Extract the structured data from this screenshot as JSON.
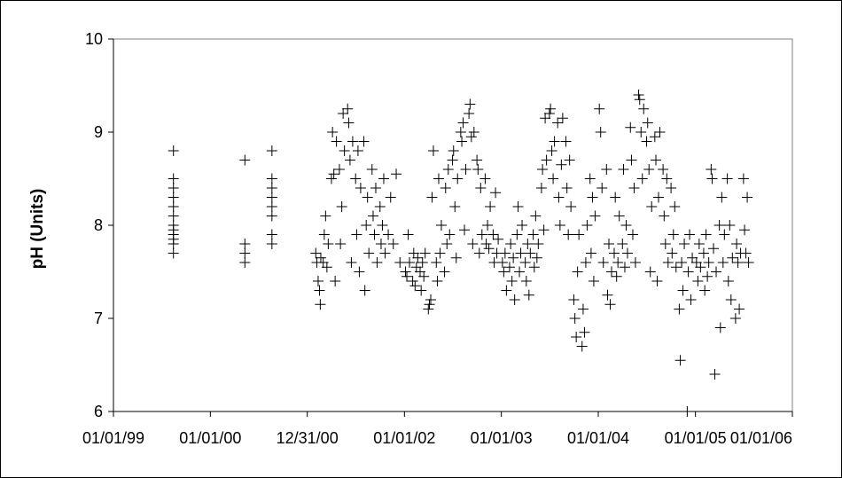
{
  "chart_data": {
    "type": "scatter",
    "ylabel": "pH (Units)",
    "xlabel": "",
    "ylim": [
      6,
      10
    ],
    "yticks": [
      "6",
      "7",
      "8",
      "9",
      "10"
    ],
    "xlim": [
      "1999-01-01",
      "2006-01-01"
    ],
    "xticks": [
      {
        "date": "1999-01-01",
        "label": "01/01/99"
      },
      {
        "date": "2000-01-01",
        "label": "01/01/00"
      },
      {
        "date": "2000-12-31",
        "label": "12/31/00"
      },
      {
        "date": "2002-01-01",
        "label": "01/01/02"
      },
      {
        "date": "2003-01-01",
        "label": "01/01/03"
      },
      {
        "date": "2004-01-01",
        "label": "01/01/04"
      },
      {
        "date": "2005-01-01",
        "label": "01/01/05"
      },
      {
        "date": "2006-01-01",
        "label": "01/01/06"
      }
    ],
    "marker": "plus",
    "marker_color": "#000000",
    "grid": false,
    "points": [
      [
        "1999-08-15",
        8.8
      ],
      [
        "1999-08-15",
        8.5
      ],
      [
        "1999-08-15",
        8.4
      ],
      [
        "1999-08-15",
        8.3
      ],
      [
        "1999-08-15",
        8.2
      ],
      [
        "1999-08-15",
        8.1
      ],
      [
        "1999-08-15",
        8.0
      ],
      [
        "1999-08-15",
        7.95
      ],
      [
        "1999-08-15",
        7.9
      ],
      [
        "1999-08-15",
        7.85
      ],
      [
        "1999-08-15",
        7.8
      ],
      [
        "1999-08-15",
        7.7
      ],
      [
        "2000-05-10",
        8.7
      ],
      [
        "2000-05-10",
        7.8
      ],
      [
        "2000-05-10",
        7.7
      ],
      [
        "2000-05-10",
        7.6
      ],
      [
        "2000-08-20",
        8.8
      ],
      [
        "2000-08-20",
        8.5
      ],
      [
        "2000-08-20",
        8.4
      ],
      [
        "2000-08-20",
        8.3
      ],
      [
        "2000-08-20",
        8.2
      ],
      [
        "2000-08-20",
        8.1
      ],
      [
        "2000-08-20",
        7.9
      ],
      [
        "2000-08-20",
        7.8
      ],
      [
        "2001-02-01",
        7.7
      ],
      [
        "2001-02-05",
        7.6
      ],
      [
        "2001-02-10",
        7.4
      ],
      [
        "2001-02-15",
        7.3
      ],
      [
        "2001-02-18",
        7.15
      ],
      [
        "2001-02-20",
        7.65
      ],
      [
        "2001-03-01",
        7.6
      ],
      [
        "2001-03-05",
        7.9
      ],
      [
        "2001-03-10",
        8.1
      ],
      [
        "2001-03-15",
        7.55
      ],
      [
        "2001-03-20",
        7.8
      ],
      [
        "2001-04-01",
        8.5
      ],
      [
        "2001-04-05",
        9.0
      ],
      [
        "2001-04-10",
        8.55
      ],
      [
        "2001-04-15",
        7.4
      ],
      [
        "2001-04-20",
        8.9
      ],
      [
        "2001-05-01",
        8.6
      ],
      [
        "2001-05-05",
        7.8
      ],
      [
        "2001-05-10",
        8.2
      ],
      [
        "2001-05-15",
        9.2
      ],
      [
        "2001-05-20",
        8.8
      ],
      [
        "2001-06-01",
        9.25
      ],
      [
        "2001-06-05",
        9.1
      ],
      [
        "2001-06-10",
        8.7
      ],
      [
        "2001-06-15",
        7.6
      ],
      [
        "2001-06-20",
        8.9
      ],
      [
        "2001-07-01",
        8.5
      ],
      [
        "2001-07-05",
        7.9
      ],
      [
        "2001-07-10",
        8.8
      ],
      [
        "2001-07-15",
        7.5
      ],
      [
        "2001-07-20",
        8.4
      ],
      [
        "2001-08-01",
        8.9
      ],
      [
        "2001-08-05",
        7.3
      ],
      [
        "2001-08-10",
        8.0
      ],
      [
        "2001-08-15",
        8.3
      ],
      [
        "2001-08-20",
        7.7
      ],
      [
        "2001-09-01",
        8.6
      ],
      [
        "2001-09-05",
        8.1
      ],
      [
        "2001-09-10",
        7.9
      ],
      [
        "2001-09-15",
        8.4
      ],
      [
        "2001-09-20",
        7.6
      ],
      [
        "2001-10-01",
        8.2
      ],
      [
        "2001-10-05",
        7.8
      ],
      [
        "2001-10-10",
        8.0
      ],
      [
        "2001-10-15",
        8.5
      ],
      [
        "2001-10-20",
        7.7
      ],
      [
        "2001-11-01",
        7.9
      ],
      [
        "2001-11-10",
        8.3
      ],
      [
        "2001-11-20",
        7.8
      ],
      [
        "2001-12-01",
        8.55
      ],
      [
        "2001-12-15",
        7.6
      ],
      [
        "2002-01-05",
        7.5
      ],
      [
        "2002-01-10",
        7.45
      ],
      [
        "2002-01-15",
        7.9
      ],
      [
        "2002-01-20",
        7.6
      ],
      [
        "2002-02-01",
        7.4
      ],
      [
        "2002-02-05",
        7.7
      ],
      [
        "2002-02-10",
        7.35
      ],
      [
        "2002-02-15",
        7.55
      ],
      [
        "2002-02-20",
        7.65
      ],
      [
        "2002-03-01",
        7.5
      ],
      [
        "2002-03-05",
        7.3
      ],
      [
        "2002-03-10",
        7.6
      ],
      [
        "2002-03-15",
        7.45
      ],
      [
        "2002-03-20",
        7.7
      ],
      [
        "2002-04-01",
        7.1
      ],
      [
        "2002-04-05",
        7.15
      ],
      [
        "2002-04-10",
        7.2
      ],
      [
        "2002-04-15",
        8.3
      ],
      [
        "2002-04-20",
        8.8
      ],
      [
        "2002-05-01",
        7.6
      ],
      [
        "2002-05-05",
        7.4
      ],
      [
        "2002-05-10",
        8.5
      ],
      [
        "2002-05-15",
        7.7
      ],
      [
        "2002-05-20",
        8.0
      ],
      [
        "2002-06-01",
        7.5
      ],
      [
        "2002-06-05",
        8.4
      ],
      [
        "2002-06-10",
        7.8
      ],
      [
        "2002-06-15",
        8.6
      ],
      [
        "2002-06-20",
        7.9
      ],
      [
        "2002-07-01",
        8.7
      ],
      [
        "2002-07-05",
        8.8
      ],
      [
        "2002-07-10",
        8.2
      ],
      [
        "2002-07-15",
        7.65
      ],
      [
        "2002-07-20",
        8.5
      ],
      [
        "2002-08-01",
        9.0
      ],
      [
        "2002-08-05",
        8.9
      ],
      [
        "2002-08-10",
        9.1
      ],
      [
        "2002-08-15",
        7.95
      ],
      [
        "2002-08-20",
        8.6
      ],
      [
        "2002-09-01",
        9.2
      ],
      [
        "2002-09-05",
        9.3
      ],
      [
        "2002-09-10",
        8.95
      ],
      [
        "2002-09-15",
        7.8
      ],
      [
        "2002-09-20",
        9.0
      ],
      [
        "2002-10-01",
        8.7
      ],
      [
        "2002-10-05",
        8.6
      ],
      [
        "2002-10-10",
        7.7
      ],
      [
        "2002-10-15",
        8.4
      ],
      [
        "2002-10-20",
        7.9
      ],
      [
        "2002-11-01",
        8.5
      ],
      [
        "2002-11-05",
        7.8
      ],
      [
        "2002-11-10",
        8.0
      ],
      [
        "2002-11-15",
        7.75
      ],
      [
        "2002-11-20",
        8.2
      ],
      [
        "2002-12-01",
        7.9
      ],
      [
        "2002-12-05",
        7.6
      ],
      [
        "2002-12-10",
        8.35
      ],
      [
        "2002-12-15",
        7.7
      ],
      [
        "2002-12-20",
        7.85
      ],
      [
        "2003-01-05",
        7.6
      ],
      [
        "2003-01-10",
        7.5
      ],
      [
        "2003-01-15",
        7.7
      ],
      [
        "2003-01-20",
        7.3
      ],
      [
        "2003-02-01",
        7.55
      ],
      [
        "2003-02-05",
        7.8
      ],
      [
        "2003-02-10",
        7.4
      ],
      [
        "2003-02-15",
        7.65
      ],
      [
        "2003-02-20",
        7.2
      ],
      [
        "2003-03-01",
        7.9
      ],
      [
        "2003-03-05",
        8.2
      ],
      [
        "2003-03-10",
        7.5
      ],
      [
        "2003-03-15",
        7.7
      ],
      [
        "2003-03-20",
        8.0
      ],
      [
        "2003-04-01",
        7.6
      ],
      [
        "2003-04-05",
        7.4
      ],
      [
        "2003-04-10",
        7.8
      ],
      [
        "2003-04-15",
        7.25
      ],
      [
        "2003-04-20",
        7.7
      ],
      [
        "2003-05-01",
        7.9
      ],
      [
        "2003-05-05",
        7.55
      ],
      [
        "2003-05-10",
        8.1
      ],
      [
        "2003-05-15",
        7.65
      ],
      [
        "2003-05-20",
        7.8
      ],
      [
        "2003-06-01",
        8.4
      ],
      [
        "2003-06-05",
        8.6
      ],
      [
        "2003-06-10",
        7.95
      ],
      [
        "2003-06-15",
        9.15
      ],
      [
        "2003-06-20",
        8.7
      ],
      [
        "2003-07-01",
        9.2
      ],
      [
        "2003-07-05",
        9.25
      ],
      [
        "2003-07-10",
        8.8
      ],
      [
        "2003-07-15",
        8.5
      ],
      [
        "2003-07-20",
        8.9
      ],
      [
        "2003-08-01",
        9.1
      ],
      [
        "2003-08-05",
        8.3
      ],
      [
        "2003-08-10",
        8.0
      ],
      [
        "2003-08-15",
        8.65
      ],
      [
        "2003-08-20",
        9.15
      ],
      [
        "2003-09-01",
        8.9
      ],
      [
        "2003-09-05",
        8.4
      ],
      [
        "2003-09-10",
        7.9
      ],
      [
        "2003-09-15",
        8.7
      ],
      [
        "2003-09-20",
        8.2
      ],
      [
        "2003-10-01",
        7.2
      ],
      [
        "2003-10-05",
        7.0
      ],
      [
        "2003-10-10",
        6.8
      ],
      [
        "2003-10-15",
        7.5
      ],
      [
        "2003-10-20",
        7.9
      ],
      [
        "2003-11-01",
        6.7
      ],
      [
        "2003-11-05",
        7.1
      ],
      [
        "2003-11-10",
        6.85
      ],
      [
        "2003-11-15",
        7.6
      ],
      [
        "2003-11-20",
        8.0
      ],
      [
        "2003-12-01",
        8.5
      ],
      [
        "2003-12-05",
        7.7
      ],
      [
        "2003-12-10",
        8.3
      ],
      [
        "2003-12-15",
        7.4
      ],
      [
        "2003-12-20",
        8.1
      ],
      [
        "2004-01-05",
        9.25
      ],
      [
        "2004-01-10",
        9.0
      ],
      [
        "2004-01-15",
        8.4
      ],
      [
        "2004-01-20",
        7.6
      ],
      [
        "2004-02-01",
        8.6
      ],
      [
        "2004-02-05",
        7.25
      ],
      [
        "2004-02-10",
        7.8
      ],
      [
        "2004-02-15",
        7.15
      ],
      [
        "2004-02-20",
        7.5
      ],
      [
        "2004-03-01",
        7.7
      ],
      [
        "2004-03-05",
        8.3
      ],
      [
        "2004-03-10",
        7.45
      ],
      [
        "2004-03-15",
        7.6
      ],
      [
        "2004-03-20",
        8.1
      ],
      [
        "2004-04-01",
        7.8
      ],
      [
        "2004-04-05",
        8.6
      ],
      [
        "2004-04-10",
        7.55
      ],
      [
        "2004-04-15",
        8.0
      ],
      [
        "2004-04-20",
        7.7
      ],
      [
        "2004-05-01",
        9.05
      ],
      [
        "2004-05-05",
        8.7
      ],
      [
        "2004-05-10",
        7.9
      ],
      [
        "2004-05-15",
        8.4
      ],
      [
        "2004-05-20",
        7.6
      ],
      [
        "2004-06-01",
        9.4
      ],
      [
        "2004-06-05",
        9.35
      ],
      [
        "2004-06-10",
        9.0
      ],
      [
        "2004-06-15",
        8.5
      ],
      [
        "2004-06-20",
        9.25
      ],
      [
        "2004-07-01",
        8.9
      ],
      [
        "2004-07-05",
        9.1
      ],
      [
        "2004-07-10",
        8.6
      ],
      [
        "2004-07-15",
        7.5
      ],
      [
        "2004-07-20",
        8.2
      ],
      [
        "2004-08-01",
        8.95
      ],
      [
        "2004-08-05",
        8.7
      ],
      [
        "2004-08-10",
        7.4
      ],
      [
        "2004-08-15",
        8.3
      ],
      [
        "2004-08-20",
        9.0
      ],
      [
        "2004-09-01",
        8.6
      ],
      [
        "2004-09-05",
        8.1
      ],
      [
        "2004-09-10",
        7.8
      ],
      [
        "2004-09-15",
        8.5
      ],
      [
        "2004-09-20",
        7.6
      ],
      [
        "2004-10-01",
        8.4
      ],
      [
        "2004-10-05",
        7.7
      ],
      [
        "2004-10-10",
        7.9
      ],
      [
        "2004-10-15",
        8.2
      ],
      [
        "2004-10-20",
        7.55
      ],
      [
        "2004-11-01",
        7.1
      ],
      [
        "2004-11-05",
        6.55
      ],
      [
        "2004-11-10",
        7.6
      ],
      [
        "2004-11-15",
        7.3
      ],
      [
        "2004-11-20",
        7.8
      ],
      [
        "2004-12-01",
        6.0
      ],
      [
        "2004-12-05",
        7.5
      ],
      [
        "2004-12-10",
        7.9
      ],
      [
        "2004-12-15",
        7.2
      ],
      [
        "2004-12-20",
        7.65
      ],
      [
        "2005-01-05",
        7.6
      ],
      [
        "2005-01-10",
        7.4
      ],
      [
        "2005-01-15",
        7.8
      ],
      [
        "2005-01-20",
        7.55
      ],
      [
        "2005-02-01",
        7.7
      ],
      [
        "2005-02-05",
        7.3
      ],
      [
        "2005-02-10",
        7.9
      ],
      [
        "2005-02-15",
        7.45
      ],
      [
        "2005-02-20",
        7.6
      ],
      [
        "2005-03-01",
        8.6
      ],
      [
        "2005-03-05",
        8.5
      ],
      [
        "2005-03-10",
        7.75
      ],
      [
        "2005-03-15",
        6.4
      ],
      [
        "2005-03-20",
        7.5
      ],
      [
        "2005-04-01",
        8.0
      ],
      [
        "2005-04-05",
        6.9
      ],
      [
        "2005-04-10",
        8.3
      ],
      [
        "2005-04-15",
        7.6
      ],
      [
        "2005-04-20",
        7.9
      ],
      [
        "2005-05-01",
        8.5
      ],
      [
        "2005-05-05",
        7.4
      ],
      [
        "2005-05-10",
        8.0
      ],
      [
        "2005-05-15",
        7.2
      ],
      [
        "2005-05-20",
        7.65
      ],
      [
        "2005-06-01",
        7.0
      ],
      [
        "2005-06-05",
        7.8
      ],
      [
        "2005-06-10",
        7.6
      ],
      [
        "2005-06-15",
        7.1
      ],
      [
        "2005-06-20",
        7.7
      ],
      [
        "2005-07-01",
        8.5
      ],
      [
        "2005-07-05",
        7.95
      ],
      [
        "2005-07-10",
        7.7
      ],
      [
        "2005-07-15",
        8.3
      ],
      [
        "2005-07-20",
        7.6
      ]
    ]
  }
}
